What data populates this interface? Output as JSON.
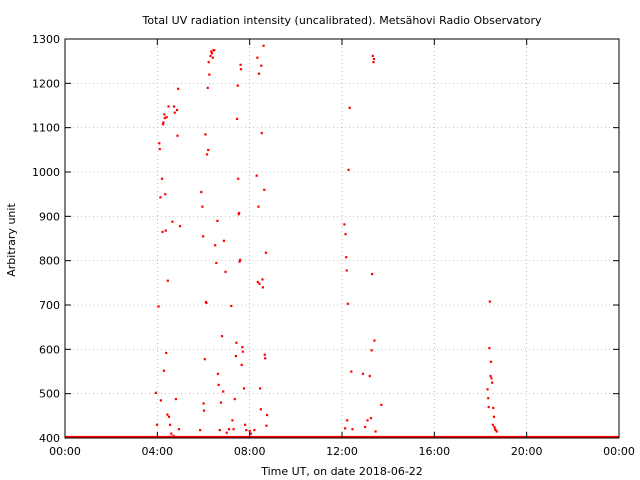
{
  "chart_data": {
    "type": "scatter",
    "title": "Total UV radiation intensity (uncalibrated). Metsähovi Radio Observatory",
    "xlabel": "Time UT, on date 2018-06-22",
    "ylabel": "Arbitrary unit",
    "xlim": [
      0,
      24
    ],
    "ylim": [
      400,
      1300
    ],
    "x_unit": "hours UT",
    "grid": true,
    "grid_style": "dotted",
    "legend": "none",
    "marker_color": "#ff0000",
    "x_ticks": [
      {
        "value": 0,
        "label": "00:00"
      },
      {
        "value": 4,
        "label": "04:00"
      },
      {
        "value": 8,
        "label": "08:00"
      },
      {
        "value": 12,
        "label": "12:00"
      },
      {
        "value": 16,
        "label": "16:00"
      },
      {
        "value": 20,
        "label": "20:00"
      },
      {
        "value": 24,
        "label": "00:00"
      }
    ],
    "y_ticks": [
      400,
      500,
      600,
      700,
      800,
      900,
      1000,
      1100,
      1200,
      1300
    ],
    "baseline": {
      "x_start": 0,
      "x_end": 24,
      "y": 402
    },
    "series": [
      {
        "points": [
          [
            3.93,
            502
          ],
          [
            3.98,
            430
          ],
          [
            4.05,
            697
          ],
          [
            4.08,
            1065
          ],
          [
            4.1,
            1052
          ],
          [
            4.13,
            943
          ],
          [
            4.15,
            485
          ],
          [
            4.2,
            985
          ],
          [
            4.22,
            865
          ],
          [
            4.24,
            1108
          ],
          [
            4.26,
            1112
          ],
          [
            4.28,
            552
          ],
          [
            4.3,
            1130
          ],
          [
            4.32,
            1122
          ],
          [
            4.34,
            950
          ],
          [
            4.36,
            868
          ],
          [
            4.38,
            592
          ],
          [
            4.4,
            1124
          ],
          [
            4.43,
            453
          ],
          [
            4.45,
            755
          ],
          [
            4.48,
            1148
          ],
          [
            4.5,
            448
          ],
          [
            4.55,
            430
          ],
          [
            4.65,
            888
          ],
          [
            4.72,
            1148
          ],
          [
            4.75,
            1134
          ],
          [
            4.8,
            488
          ],
          [
            4.85,
            1140
          ],
          [
            4.87,
            1082
          ],
          [
            4.9,
            1188
          ],
          [
            4.93,
            420
          ],
          [
            4.98,
            878
          ],
          [
            4.6,
            410
          ],
          [
            4.7,
            405
          ],
          [
            5.85,
            418
          ],
          [
            5.9,
            955
          ],
          [
            5.95,
            922
          ],
          [
            5.98,
            855
          ],
          [
            6.0,
            478
          ],
          [
            6.02,
            462
          ],
          [
            6.05,
            578
          ],
          [
            6.08,
            1085
          ],
          [
            6.1,
            707
          ],
          [
            6.12,
            705
          ],
          [
            6.15,
            1040
          ],
          [
            6.18,
            1190
          ],
          [
            6.2,
            1050
          ],
          [
            6.22,
            1248
          ],
          [
            6.25,
            1220
          ],
          [
            6.3,
            1262
          ],
          [
            6.33,
            1272
          ],
          [
            6.36,
            1268
          ],
          [
            6.4,
            1258
          ],
          [
            6.43,
            1275
          ],
          [
            6.46,
            1275
          ],
          [
            6.5,
            835
          ],
          [
            6.55,
            795
          ],
          [
            6.6,
            890
          ],
          [
            6.62,
            545
          ],
          [
            6.65,
            520
          ],
          [
            6.7,
            418
          ],
          [
            6.75,
            480
          ],
          [
            6.8,
            630
          ],
          [
            6.85,
            505
          ],
          [
            6.88,
            845
          ],
          [
            6.95,
            775
          ],
          [
            7.0,
            412
          ],
          [
            7.1,
            420
          ],
          [
            7.2,
            698
          ],
          [
            7.25,
            440
          ],
          [
            7.3,
            420
          ],
          [
            7.35,
            488
          ],
          [
            7.4,
            585
          ],
          [
            7.42,
            615
          ],
          [
            7.45,
            1120
          ],
          [
            7.48,
            1195
          ],
          [
            7.5,
            985
          ],
          [
            7.52,
            905
          ],
          [
            7.54,
            908
          ],
          [
            7.56,
            798
          ],
          [
            7.58,
            802
          ],
          [
            7.6,
            1242
          ],
          [
            7.62,
            1232
          ],
          [
            7.65,
            565
          ],
          [
            7.68,
            605
          ],
          [
            7.7,
            595
          ],
          [
            7.75,
            512
          ],
          [
            7.8,
            430
          ],
          [
            7.85,
            418
          ],
          [
            8.0,
            416
          ],
          [
            8.05,
            410
          ],
          [
            8.2,
            418
          ],
          [
            8.3,
            992
          ],
          [
            8.33,
            1258
          ],
          [
            8.35,
            752
          ],
          [
            8.38,
            922
          ],
          [
            8.4,
            1222
          ],
          [
            8.42,
            748
          ],
          [
            8.45,
            512
          ],
          [
            8.48,
            465
          ],
          [
            8.5,
            1240
          ],
          [
            8.52,
            1088
          ],
          [
            8.55,
            758
          ],
          [
            8.57,
            740
          ],
          [
            8.6,
            1285
          ],
          [
            8.63,
            960
          ],
          [
            8.65,
            588
          ],
          [
            8.67,
            580
          ],
          [
            8.7,
            818
          ],
          [
            8.72,
            428
          ],
          [
            8.75,
            452
          ],
          [
            12.1,
            882
          ],
          [
            12.13,
            422
          ],
          [
            12.15,
            860
          ],
          [
            12.18,
            808
          ],
          [
            12.2,
            778
          ],
          [
            12.22,
            440
          ],
          [
            12.25,
            703
          ],
          [
            12.28,
            1005
          ],
          [
            12.33,
            1145
          ],
          [
            12.4,
            550
          ],
          [
            12.45,
            420
          ],
          [
            12.9,
            545
          ],
          [
            13.0,
            425
          ],
          [
            13.1,
            440
          ],
          [
            13.2,
            540
          ],
          [
            13.25,
            445
          ],
          [
            13.28,
            598
          ],
          [
            13.3,
            770
          ],
          [
            13.33,
            1262
          ],
          [
            13.36,
            1248
          ],
          [
            13.38,
            1255
          ],
          [
            13.4,
            620
          ],
          [
            13.7,
            475
          ],
          [
            13.45,
            415
          ],
          [
            18.3,
            510
          ],
          [
            18.33,
            490
          ],
          [
            18.35,
            470
          ],
          [
            18.38,
            603
          ],
          [
            18.4,
            708
          ],
          [
            18.43,
            540
          ],
          [
            18.45,
            572
          ],
          [
            18.47,
            535
          ],
          [
            18.5,
            525
          ],
          [
            18.53,
            430
          ],
          [
            18.55,
            468
          ],
          [
            18.58,
            448
          ],
          [
            18.6,
            425
          ],
          [
            18.63,
            420
          ],
          [
            18.65,
            418
          ],
          [
            18.7,
            415
          ]
        ]
      }
    ]
  }
}
